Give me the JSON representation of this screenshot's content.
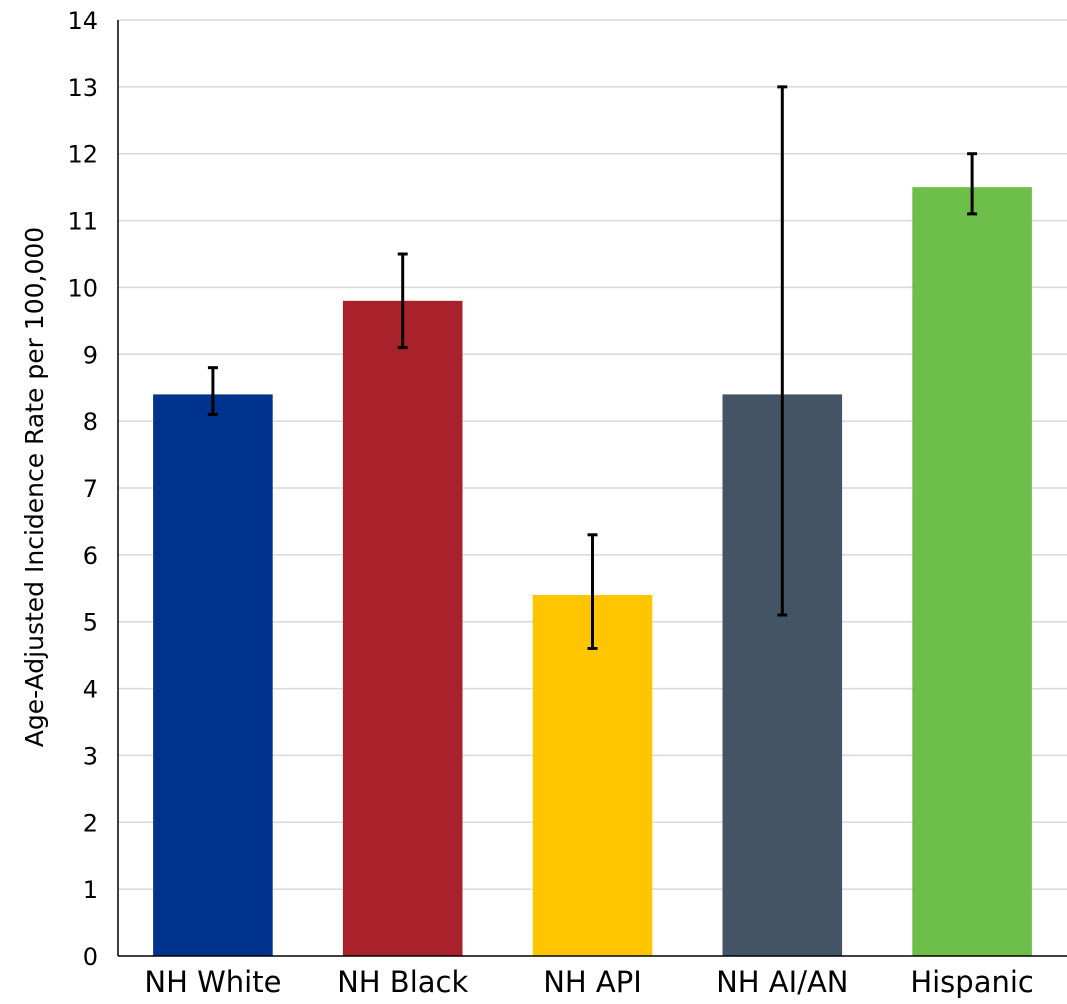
{
  "chart_data": {
    "type": "bar",
    "title": "",
    "xlabel": "",
    "ylabel": "Age-Adjusted Incidence Rate per 100,000",
    "ylim": [
      0,
      14
    ],
    "yticks": [
      0,
      1,
      2,
      3,
      4,
      5,
      6,
      7,
      8,
      9,
      10,
      11,
      12,
      13,
      14
    ],
    "grid": true,
    "categories": [
      "NH White",
      "NH Black",
      "NH API",
      "NH AI/AN",
      "Hispanic"
    ],
    "values": [
      8.4,
      9.8,
      5.4,
      8.4,
      11.5
    ],
    "error_lower": [
      8.1,
      9.1,
      4.6,
      5.1,
      11.1
    ],
    "error_upper": [
      8.8,
      10.5,
      6.3,
      13.0,
      12.0
    ],
    "colors": [
      "#00338d",
      "#a9222b",
      "#ffc600",
      "#435465",
      "#6ebe4a"
    ],
    "gridline_color": "#d9d9d9",
    "axis_color": "#000000",
    "errorbar_color": "#000000"
  }
}
